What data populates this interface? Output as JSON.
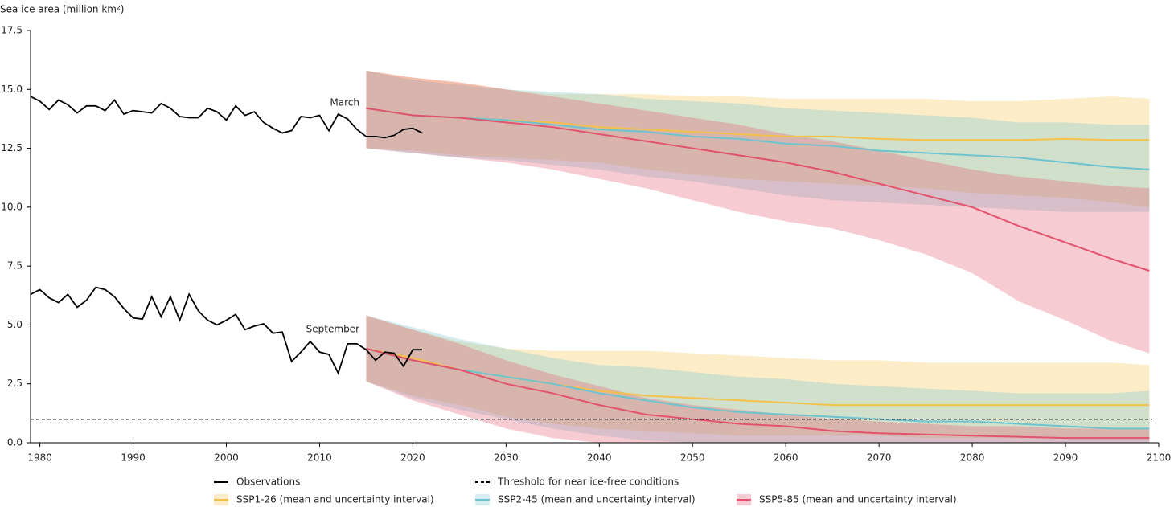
{
  "chart_data": {
    "type": "line",
    "y_label": "Sea ice area (million km²)",
    "xlim": [
      1979,
      2100
    ],
    "ylim": [
      0,
      17.5
    ],
    "xticks": [
      1980,
      1990,
      2000,
      2010,
      2020,
      2030,
      2040,
      2050,
      2060,
      2070,
      2080,
      2090,
      2100
    ],
    "yticks": [
      {
        "value": 0,
        "label": "0.0"
      },
      2.5,
      {
        "value": 5,
        "label": "5.0"
      },
      7.5,
      {
        "value": 10,
        "label": "10.0"
      },
      12.5,
      {
        "value": 15,
        "label": "15.0"
      },
      17.5
    ],
    "annotations": [
      "March",
      "September"
    ],
    "threshold": {
      "name": "Threshold for near ice-free conditions",
      "value": 1
    },
    "observations": {
      "name": "Observations",
      "color": "#000000",
      "x": [
        1979,
        1980,
        1981,
        1982,
        1983,
        1984,
        1985,
        1986,
        1987,
        1988,
        1989,
        1990,
        1991,
        1992,
        1993,
        1994,
        1995,
        1996,
        1997,
        1998,
        1999,
        2000,
        2001,
        2002,
        2003,
        2004,
        2005,
        2006,
        2007,
        2008,
        2009,
        2010,
        2011,
        2012,
        2013,
        2014,
        2015,
        2016,
        2017,
        2018,
        2019,
        2020,
        2021
      ],
      "march": [
        14.7,
        14.5,
        14.15,
        14.55,
        14.35,
        14.0,
        14.3,
        14.3,
        14.1,
        14.55,
        13.95,
        14.1,
        14.05,
        14.0,
        14.4,
        14.2,
        13.85,
        13.8,
        13.8,
        14.2,
        14.05,
        13.7,
        14.3,
        13.9,
        14.05,
        13.6,
        13.35,
        13.15,
        13.25,
        13.85,
        13.8,
        13.9,
        13.25,
        13.95,
        13.75,
        13.3,
        13.0,
        13.0,
        12.95,
        13.05,
        13.3,
        13.35,
        13.15
      ],
      "september": [
        6.3,
        6.5,
        6.15,
        5.95,
        6.3,
        5.75,
        6.05,
        6.6,
        6.5,
        6.2,
        5.7,
        5.3,
        5.25,
        6.2,
        5.35,
        6.2,
        5.2,
        6.3,
        5.6,
        5.2,
        5.0,
        5.2,
        5.45,
        4.8,
        4.95,
        5.05,
        4.65,
        4.7,
        3.45,
        3.85,
        4.3,
        3.85,
        3.75,
        2.95,
        4.2,
        4.2,
        3.95,
        3.5,
        3.85,
        3.8,
        3.25,
        3.95,
        3.95
      ]
    },
    "series": [
      {
        "name": "SSP1-26 (mean and uncertainty interval)",
        "color": "#f5c049",
        "x": [
          2015,
          2020,
          2025,
          2030,
          2035,
          2040,
          2045,
          2050,
          2055,
          2060,
          2065,
          2070,
          2075,
          2080,
          2085,
          2090,
          2095,
          2099
        ],
        "march": {
          "mean": [
            14.2,
            13.9,
            13.8,
            13.7,
            13.6,
            13.4,
            13.3,
            13.2,
            13.1,
            13.0,
            13.0,
            12.9,
            12.85,
            12.85,
            12.85,
            12.9,
            12.85,
            12.85
          ],
          "low": [
            12.5,
            12.4,
            12.2,
            12.1,
            12.0,
            11.9,
            11.6,
            11.4,
            11.2,
            11.1,
            11.0,
            10.9,
            10.8,
            10.6,
            10.5,
            10.4,
            10.2,
            10.0
          ],
          "high": [
            15.8,
            15.5,
            15.3,
            15.0,
            14.8,
            14.8,
            14.8,
            14.7,
            14.7,
            14.6,
            14.6,
            14.6,
            14.6,
            14.5,
            14.5,
            14.6,
            14.7,
            14.6
          ]
        },
        "september": {
          "mean": [
            4.0,
            3.6,
            3.1,
            2.8,
            2.5,
            2.2,
            2.0,
            1.9,
            1.8,
            1.7,
            1.6,
            1.6,
            1.6,
            1.6,
            1.6,
            1.6,
            1.6,
            1.6
          ],
          "low": [
            2.6,
            2.0,
            1.6,
            1.1,
            0.8,
            0.6,
            0.5,
            0.4,
            0.3,
            0.3,
            0.3,
            0.3,
            0.2,
            0.2,
            0.2,
            0.2,
            0.2,
            0.2
          ],
          "high": [
            5.4,
            4.8,
            4.3,
            4.0,
            3.9,
            3.9,
            3.9,
            3.8,
            3.7,
            3.6,
            3.5,
            3.5,
            3.4,
            3.4,
            3.4,
            3.4,
            3.4,
            3.3
          ]
        }
      },
      {
        "name": "SSP2-45 (mean and uncertainty interval)",
        "color": "#6cc4d0",
        "x": [
          2015,
          2020,
          2025,
          2030,
          2035,
          2040,
          2045,
          2050,
          2055,
          2060,
          2065,
          2070,
          2075,
          2080,
          2085,
          2090,
          2095,
          2099
        ],
        "march": {
          "mean": [
            14.2,
            13.9,
            13.8,
            13.7,
            13.5,
            13.3,
            13.2,
            13.0,
            12.9,
            12.7,
            12.6,
            12.4,
            12.3,
            12.2,
            12.1,
            11.9,
            11.7,
            11.6
          ],
          "low": [
            12.5,
            12.3,
            12.1,
            12.0,
            11.8,
            11.6,
            11.3,
            11.1,
            10.8,
            10.5,
            10.3,
            10.2,
            10.1,
            10.0,
            9.9,
            9.8,
            9.8,
            9.8
          ],
          "high": [
            15.8,
            15.4,
            15.2,
            15.0,
            14.9,
            14.8,
            14.6,
            14.5,
            14.4,
            14.2,
            14.1,
            14.0,
            13.9,
            13.8,
            13.6,
            13.6,
            13.5,
            13.5
          ]
        },
        "september": {
          "mean": [
            4.0,
            3.5,
            3.1,
            2.8,
            2.5,
            2.1,
            1.8,
            1.5,
            1.3,
            1.2,
            1.1,
            1.0,
            0.9,
            0.9,
            0.8,
            0.7,
            0.6,
            0.6
          ],
          "low": [
            2.6,
            1.9,
            1.4,
            1.0,
            0.6,
            0.3,
            0.1,
            0,
            0,
            0,
            0,
            0,
            0,
            0,
            0,
            0,
            0,
            0
          ],
          "high": [
            5.4,
            4.9,
            4.4,
            4.0,
            3.6,
            3.3,
            3.2,
            3.0,
            2.8,
            2.7,
            2.5,
            2.4,
            2.3,
            2.2,
            2.1,
            2.1,
            2.1,
            2.2
          ]
        }
      },
      {
        "name": "SSP5-85 (mean and uncertainty interval)",
        "color": "#e3526a",
        "x": [
          2015,
          2020,
          2025,
          2030,
          2035,
          2040,
          2045,
          2050,
          2055,
          2060,
          2065,
          2070,
          2075,
          2080,
          2085,
          2090,
          2095,
          2099
        ],
        "march": {
          "mean": [
            14.2,
            13.9,
            13.8,
            13.6,
            13.4,
            13.1,
            12.8,
            12.5,
            12.2,
            11.9,
            11.5,
            11.0,
            10.5,
            10.0,
            9.2,
            8.5,
            7.8,
            7.3
          ],
          "low": [
            12.5,
            12.3,
            12.1,
            11.9,
            11.6,
            11.2,
            10.8,
            10.3,
            9.8,
            9.4,
            9.1,
            8.6,
            8.0,
            7.2,
            6.0,
            5.2,
            4.3,
            3.8
          ],
          "high": [
            15.8,
            15.5,
            15.3,
            15.0,
            14.7,
            14.4,
            14.1,
            13.8,
            13.5,
            13.1,
            12.8,
            12.4,
            12.0,
            11.6,
            11.3,
            11.1,
            10.9,
            10.8
          ]
        },
        "september": {
          "mean": [
            4.0,
            3.5,
            3.1,
            2.5,
            2.1,
            1.6,
            1.2,
            1.0,
            0.8,
            0.7,
            0.5,
            0.4,
            0.35,
            0.3,
            0.25,
            0.2,
            0.2,
            0.2
          ],
          "low": [
            2.6,
            1.8,
            1.2,
            0.6,
            0.2,
            0,
            0,
            0,
            0,
            0,
            0,
            0,
            0,
            0,
            0,
            0,
            0,
            0
          ],
          "high": [
            5.4,
            4.8,
            4.2,
            3.5,
            2.9,
            2.4,
            1.9,
            1.6,
            1.4,
            1.2,
            1.0,
            0.9,
            0.8,
            0.7,
            0.7,
            0.6,
            0.6,
            0.6
          ]
        }
      }
    ]
  }
}
